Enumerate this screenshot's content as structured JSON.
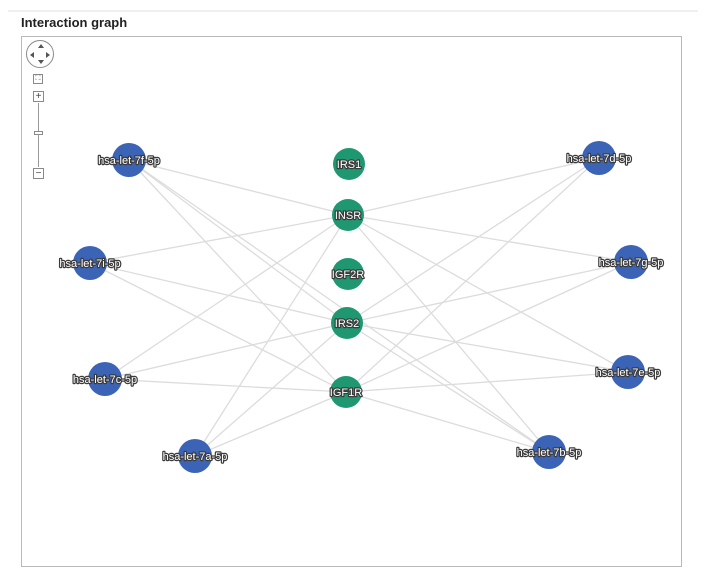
{
  "title": "Interaction graph",
  "colors": {
    "mirna": "#3b63b6",
    "gene": "#1f9872",
    "edge": "#dcdcdc"
  },
  "controls": {
    "pan_icon": "pan-control-icon",
    "fit_icon": "fit-view-icon",
    "zoom_in_label": "+",
    "zoom_out_label": "−",
    "zoom_level": 0.55
  },
  "nodes": [
    {
      "id": "hsa-let-7f-5p",
      "label": "hsa-let-7f-5p",
      "type": "mirna"
    },
    {
      "id": "hsa-let-7i-5p",
      "label": "hsa-let-7i-5p",
      "type": "mirna"
    },
    {
      "id": "hsa-let-7c-5p",
      "label": "hsa-let-7c-5p",
      "type": "mirna"
    },
    {
      "id": "hsa-let-7a-5p",
      "label": "hsa-let-7a-5p",
      "type": "mirna"
    },
    {
      "id": "hsa-let-7d-5p",
      "label": "hsa-let-7d-5p",
      "type": "mirna"
    },
    {
      "id": "hsa-let-7g-5p",
      "label": "hsa-let-7g-5p",
      "type": "mirna"
    },
    {
      "id": "hsa-let-7e-5p",
      "label": "hsa-let-7e-5p",
      "type": "mirna"
    },
    {
      "id": "hsa-let-7b-5p",
      "label": "hsa-let-7b-5p",
      "type": "mirna"
    },
    {
      "id": "IRS1",
      "label": "IRS1",
      "type": "gene"
    },
    {
      "id": "INSR",
      "label": "INSR",
      "type": "gene"
    },
    {
      "id": "IGF2R",
      "label": "IGF2R",
      "type": "gene"
    },
    {
      "id": "IRS2",
      "label": "IRS2",
      "type": "gene"
    },
    {
      "id": "IGF1R",
      "label": "IGF1R",
      "type": "gene"
    }
  ],
  "edges": [
    [
      "hsa-let-7f-5p",
      "INSR"
    ],
    [
      "hsa-let-7f-5p",
      "IRS2"
    ],
    [
      "hsa-let-7f-5p",
      "IGF1R"
    ],
    [
      "hsa-let-7f-5p",
      "hsa-let-7b-5p"
    ],
    [
      "hsa-let-7i-5p",
      "INSR"
    ],
    [
      "hsa-let-7i-5p",
      "IRS2"
    ],
    [
      "hsa-let-7i-5p",
      "IGF1R"
    ],
    [
      "hsa-let-7c-5p",
      "INSR"
    ],
    [
      "hsa-let-7c-5p",
      "IRS2"
    ],
    [
      "hsa-let-7c-5p",
      "IGF1R"
    ],
    [
      "hsa-let-7a-5p",
      "INSR"
    ],
    [
      "hsa-let-7a-5p",
      "IRS2"
    ],
    [
      "hsa-let-7a-5p",
      "IGF1R"
    ],
    [
      "hsa-let-7d-5p",
      "INSR"
    ],
    [
      "hsa-let-7d-5p",
      "IRS2"
    ],
    [
      "hsa-let-7d-5p",
      "IGF1R"
    ],
    [
      "hsa-let-7g-5p",
      "INSR"
    ],
    [
      "hsa-let-7g-5p",
      "IRS2"
    ],
    [
      "hsa-let-7g-5p",
      "IGF1R"
    ],
    [
      "hsa-let-7e-5p",
      "INSR"
    ],
    [
      "hsa-let-7e-5p",
      "IRS2"
    ],
    [
      "hsa-let-7e-5p",
      "IGF1R"
    ],
    [
      "hsa-let-7b-5p",
      "INSR"
    ],
    [
      "hsa-let-7b-5p",
      "IRS2"
    ],
    [
      "hsa-let-7b-5p",
      "IGF1R"
    ]
  ]
}
